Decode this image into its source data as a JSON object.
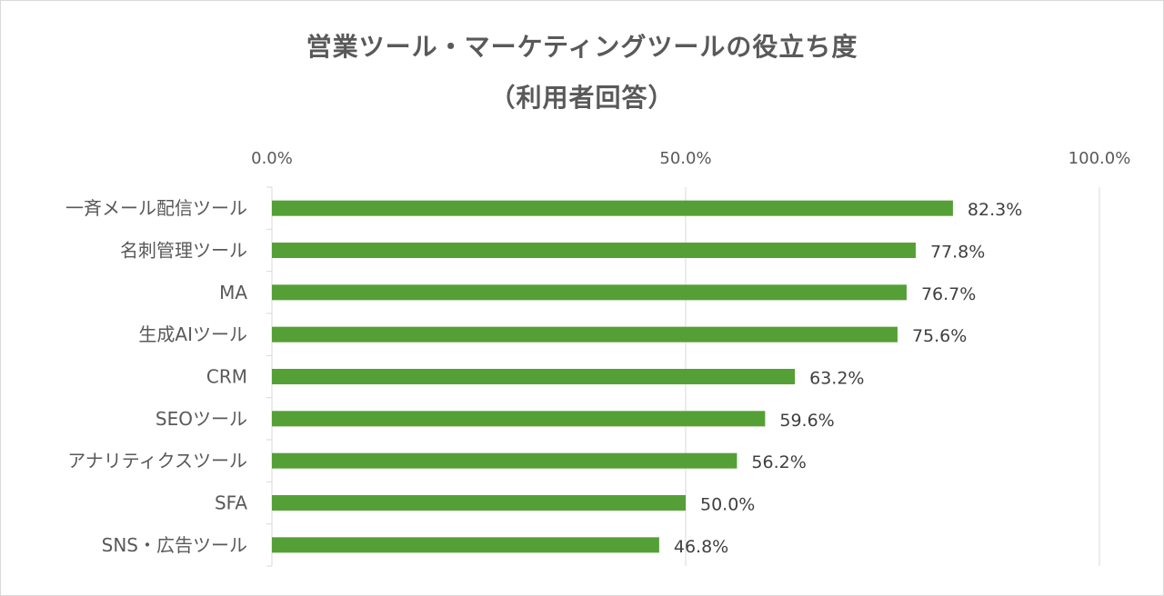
{
  "chart_data": {
    "type": "bar",
    "orientation": "horizontal",
    "title": "営業ツール・マーケティングツールの役立ち度",
    "subtitle": "（利用者回答）",
    "categories": [
      "一斉メール配信ツール",
      "名刺管理ツール",
      "MA",
      "生成AIツール",
      "CRM",
      "SEOツール",
      "アナリティクスツール",
      "SFA",
      "SNS・広告ツール"
    ],
    "values": [
      82.3,
      77.8,
      76.7,
      75.6,
      63.2,
      59.6,
      56.2,
      50.0,
      46.8
    ],
    "value_labels": [
      "82.3%",
      "77.8%",
      "76.7%",
      "75.6%",
      "63.2%",
      "59.6%",
      "56.2%",
      "50.0%",
      "46.8%"
    ],
    "xlim": [
      0,
      100
    ],
    "x_ticks": [
      0,
      50,
      100
    ],
    "x_tick_labels": [
      "0.0%",
      "50.0%",
      "100.0%"
    ],
    "xlabel": "",
    "ylabel": "",
    "grid": true,
    "axis_position": "top",
    "bar_color": "#54a037"
  }
}
